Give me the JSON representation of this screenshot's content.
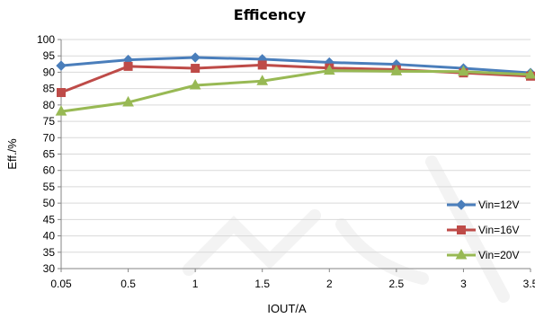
{
  "chart_data": {
    "type": "line",
    "title": "Efficency",
    "xlabel": "IOUT/A",
    "ylabel": "Eff./%",
    "categories": [
      "0.05",
      "0.5",
      "1",
      "1.5",
      "2",
      "2.5",
      "3",
      "3.5"
    ],
    "ylim": [
      30,
      100
    ],
    "ytick_step": 5,
    "grid": true,
    "legend_position": "bottom-right",
    "series": [
      {
        "name": "Vin=12V",
        "color": "#4a7ebb",
        "marker": "diamond",
        "values": [
          92.0,
          93.8,
          94.5,
          94.0,
          93.0,
          92.4,
          91.2,
          89.8
        ]
      },
      {
        "name": "Vin=16V",
        "color": "#be4b48",
        "marker": "square",
        "values": [
          83.8,
          91.8,
          91.2,
          92.2,
          91.3,
          90.8,
          89.8,
          88.8
        ]
      },
      {
        "name": "Vin=20V",
        "color": "#98b954",
        "marker": "triangle",
        "values": [
          78.0,
          80.8,
          86.0,
          87.3,
          90.5,
          90.3,
          90.2,
          89.3
        ]
      }
    ]
  }
}
